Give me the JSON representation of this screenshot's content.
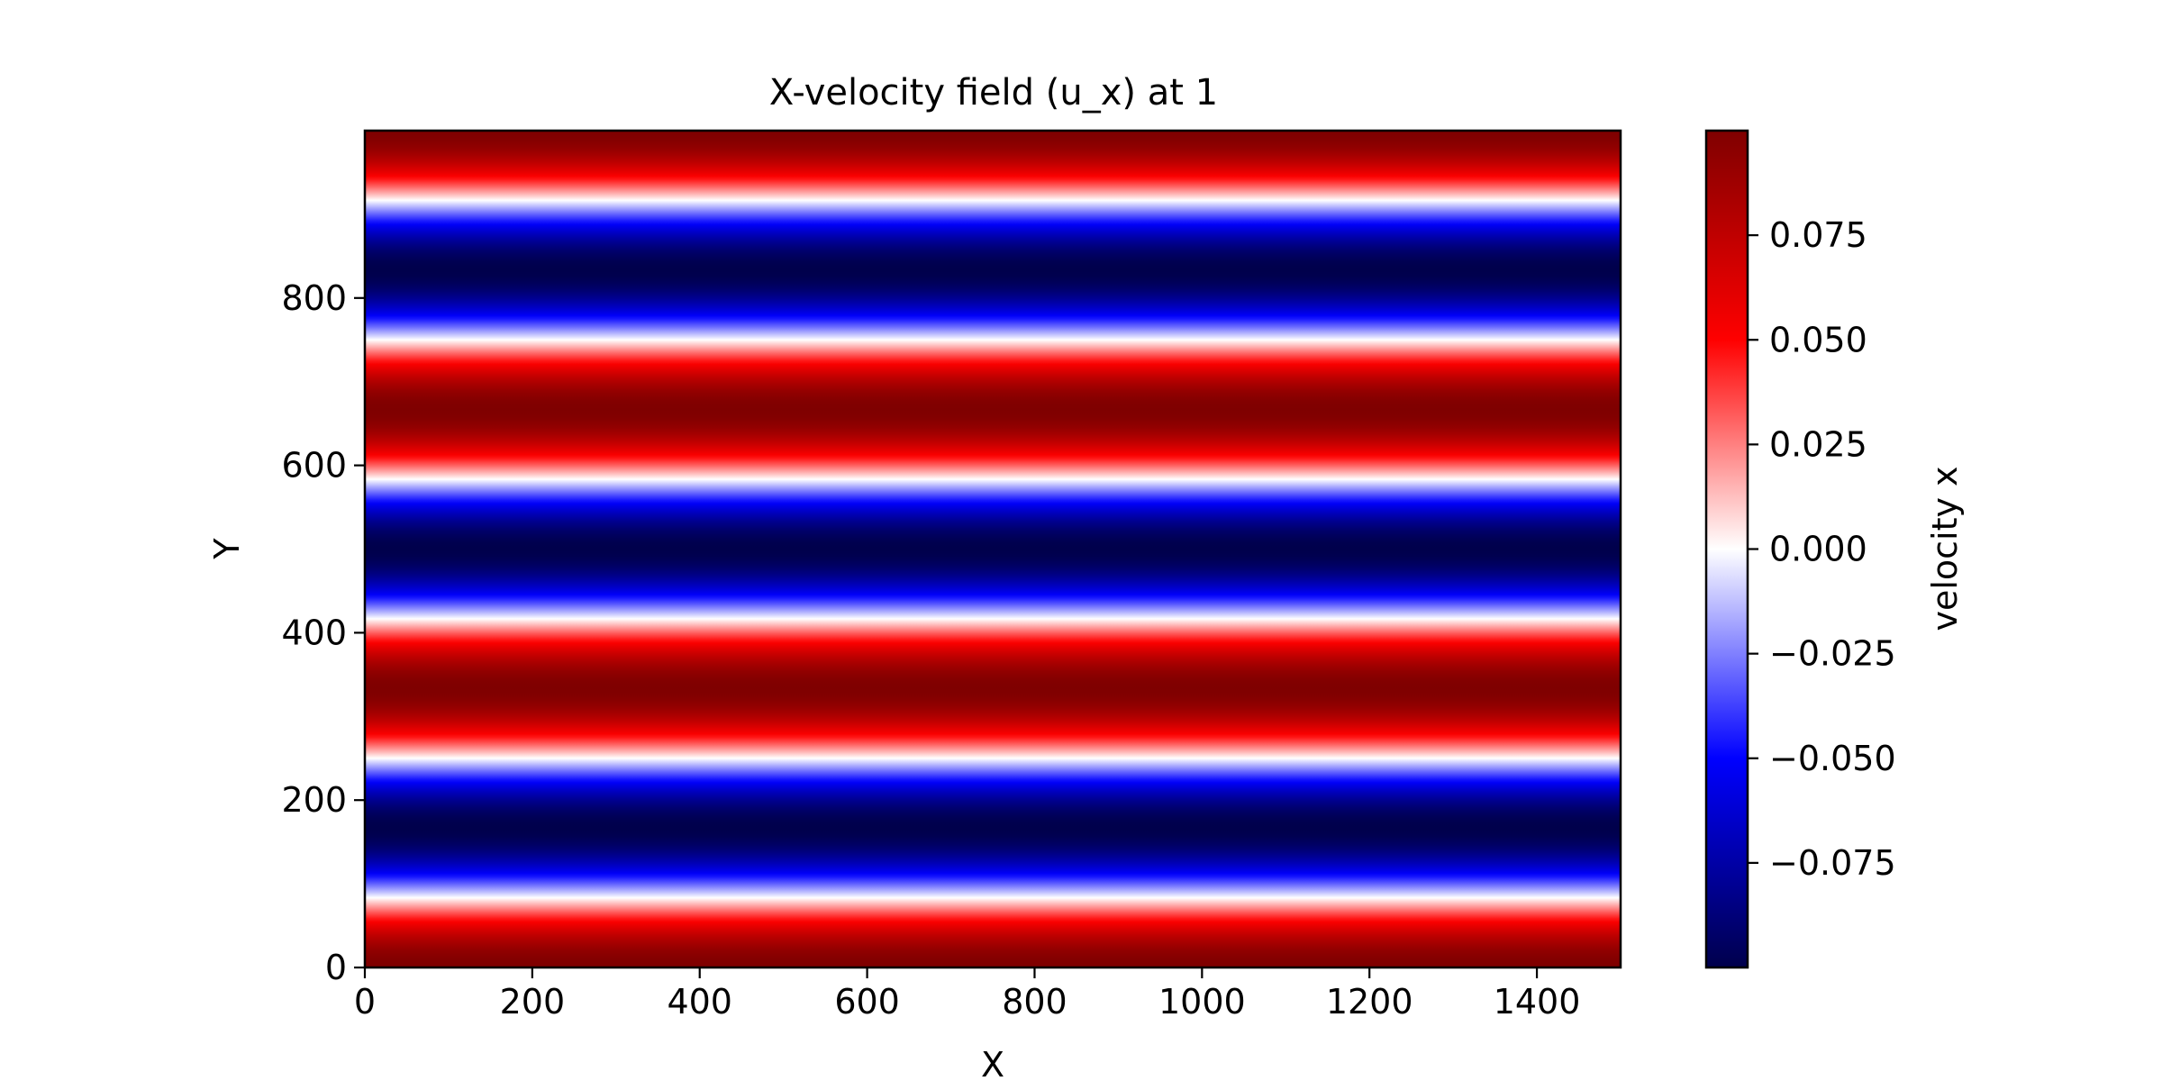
{
  "chart_data": {
    "type": "heatmap",
    "title": "X-velocity field (u_x) at 1",
    "xlabel": "X",
    "ylabel": "Y",
    "xlim": [
      0,
      1500
    ],
    "ylim": [
      0,
      1000
    ],
    "x_ticks": [
      0,
      200,
      400,
      600,
      800,
      1000,
      1200,
      1400
    ],
    "y_ticks": [
      0,
      200,
      400,
      600,
      800
    ],
    "field": {
      "expression": "u_x = 0.1 * cos(6*pi*y/1000)",
      "amplitude": 0.1,
      "wavelength_y": 333.33,
      "varies_along": "y",
      "uniform_along": "x"
    },
    "colormap": {
      "name": "seismic",
      "vmin": -0.1,
      "vmax": 0.1
    },
    "colorbar": {
      "label": "velocity x",
      "ticks": [
        -0.075,
        -0.05,
        -0.025,
        0.0,
        0.025,
        0.05,
        0.075
      ],
      "tick_labels": [
        "−0.075",
        "−0.050",
        "−0.025",
        "0.000",
        "0.025",
        "0.050",
        "0.075"
      ]
    },
    "grid": false
  }
}
